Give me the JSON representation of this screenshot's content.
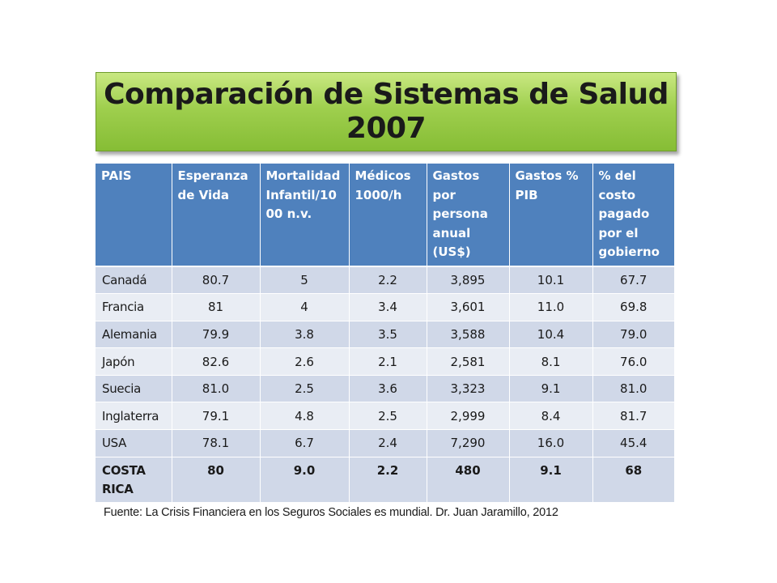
{
  "title": {
    "line1": "Comparación de Sistemas de Salud",
    "line2": "2007"
  },
  "table": {
    "headers": [
      "PAIS",
      "Esperanza de Vida",
      "Mortalidad Infantil/1000 n.v.",
      "Médicos 1000/h",
      "Gastos por persona anual (US$)",
      "Gastos % PIB",
      "% del costo pagado por el gobierno"
    ],
    "rows": [
      [
        "Canadá",
        "80.7",
        "5",
        "2.2",
        "3,895",
        "10.1",
        "67.7"
      ],
      [
        "Francia",
        "81",
        "4",
        "3.4",
        "3,601",
        "11.0",
        "69.8"
      ],
      [
        "Alemania",
        "79.9",
        "3.8",
        "3.5",
        "3,588",
        "10.4",
        "79.0"
      ],
      [
        "Japón",
        "82.6",
        "2.6",
        "2.1",
        "2,581",
        "8.1",
        "76.0"
      ],
      [
        "Suecia",
        "81.0",
        "2.5",
        "3.6",
        "3,323",
        "9.1",
        "81.0"
      ],
      [
        "Inglaterra",
        "79.1",
        "4.8",
        "2.5",
        "2,999",
        "8.4",
        "81.7"
      ],
      [
        "USA",
        "78.1",
        "6.7",
        "2.4",
        "7,290",
        "16.0",
        "45.4"
      ],
      [
        "COSTA RICA",
        "80",
        "9.0",
        "2.2",
        "480",
        "9.1",
        "68"
      ]
    ]
  },
  "source": "Fuente: La Crisis Financiera en los Seguros Sociales es mundial. Dr. Juan Jaramillo, 2012"
}
